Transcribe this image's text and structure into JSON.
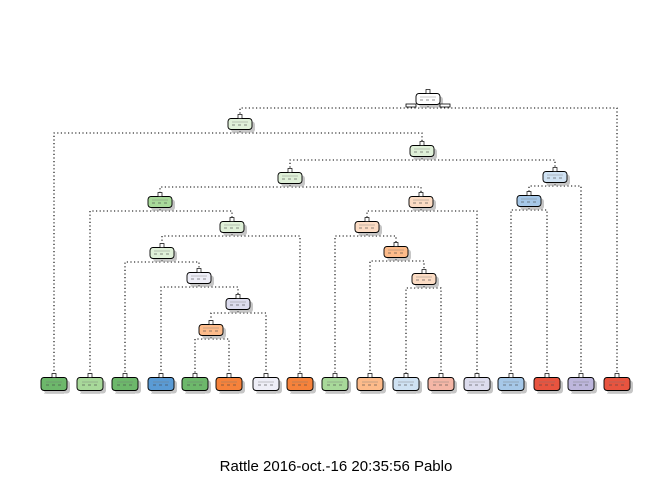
{
  "caption": "Rattle 2016-oct.-16 20:35:56 Pablo",
  "colors": {
    "line": "#000000",
    "shadow": "#a0a0a0",
    "light_green": "#dff0d8",
    "green": "#a8d99a",
    "dark_green": "#6db86b",
    "light_orange": "#fcdcc4",
    "orange": "#fdbb8a",
    "dark_orange": "#f6823b",
    "light_blue": "#cfe2f3",
    "blue": "#a6c8e8",
    "dark_blue": "#5a9bd5",
    "red": "#e8543f",
    "salmon": "#f4b6a6",
    "light_purple": "#dcdcee",
    "purple": "#bdb6dc",
    "pale": "#eeeef7",
    "white": "#ffffff"
  },
  "nodes": [
    {
      "id": "n1",
      "color": "white",
      "kind": "root"
    },
    {
      "id": "n2",
      "color": "light_green"
    },
    {
      "id": "n3",
      "color": "light_green"
    },
    {
      "id": "n4",
      "color": "light_green"
    },
    {
      "id": "n5",
      "color": "light_blue"
    },
    {
      "id": "n6",
      "color": "green"
    },
    {
      "id": "n7",
      "color": "light_orange"
    },
    {
      "id": "n8",
      "color": "blue"
    },
    {
      "id": "n9",
      "color": "light_green"
    },
    {
      "id": "n10",
      "color": "light_orange"
    },
    {
      "id": "n11",
      "color": "light_green"
    },
    {
      "id": "n12",
      "color": "orange"
    },
    {
      "id": "n13",
      "color": "pale"
    },
    {
      "id": "n14",
      "color": "light_orange"
    },
    {
      "id": "n15",
      "color": "light_purple"
    },
    {
      "id": "n16",
      "color": "orange"
    }
  ],
  "leaves": [
    {
      "id": "l1",
      "color": "dark_green"
    },
    {
      "id": "l2",
      "color": "green"
    },
    {
      "id": "l3",
      "color": "dark_green"
    },
    {
      "id": "l4",
      "color": "dark_blue"
    },
    {
      "id": "l5",
      "color": "dark_green"
    },
    {
      "id": "l6",
      "color": "dark_orange"
    },
    {
      "id": "l7",
      "color": "pale"
    },
    {
      "id": "l8",
      "color": "dark_orange"
    },
    {
      "id": "l9",
      "color": "green"
    },
    {
      "id": "l10",
      "color": "orange"
    },
    {
      "id": "l11",
      "color": "light_blue"
    },
    {
      "id": "l12",
      "color": "salmon"
    },
    {
      "id": "l13",
      "color": "light_purple"
    },
    {
      "id": "l14",
      "color": "blue"
    },
    {
      "id": "l15",
      "color": "red"
    },
    {
      "id": "l16",
      "color": "purple"
    },
    {
      "id": "l17",
      "color": "red"
    }
  ],
  "edges": [
    [
      "n1",
      "n2"
    ],
    [
      "n1",
      "l17"
    ],
    [
      "n2",
      "l1"
    ],
    [
      "n2",
      "n3"
    ],
    [
      "n3",
      "n4"
    ],
    [
      "n3",
      "n5"
    ],
    [
      "n4",
      "n6"
    ],
    [
      "n4",
      "n7"
    ],
    [
      "n6",
      "l2"
    ],
    [
      "n6",
      "n9"
    ],
    [
      "n9",
      "n11"
    ],
    [
      "n9",
      "l8"
    ],
    [
      "n11",
      "l3"
    ],
    [
      "n11",
      "n13"
    ],
    [
      "n13",
      "l4"
    ],
    [
      "n13",
      "n15"
    ],
    [
      "n15",
      "n16"
    ],
    [
      "n15",
      "l7"
    ],
    [
      "n16",
      "l5"
    ],
    [
      "n16",
      "l6"
    ],
    [
      "n7",
      "n10"
    ],
    [
      "n7",
      "l13"
    ],
    [
      "n10",
      "l9"
    ],
    [
      "n10",
      "n12"
    ],
    [
      "n12",
      "l10"
    ],
    [
      "n12",
      "n14"
    ],
    [
      "n14",
      "l11"
    ],
    [
      "n14",
      "l12"
    ],
    [
      "n5",
      "n8"
    ],
    [
      "n5",
      "l16"
    ],
    [
      "n8",
      "l14"
    ],
    [
      "n8",
      "l15"
    ]
  ]
}
